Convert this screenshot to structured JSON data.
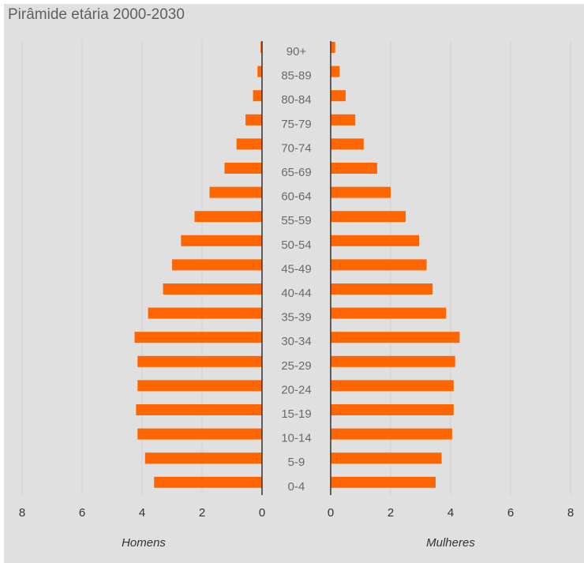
{
  "title": "Pirâmide etária 2000-2030",
  "chart_data": {
    "type": "bar",
    "orientation": "horizontal",
    "title": "Pirâmide etária 2000-2030",
    "categories": [
      "0-4",
      "5-9",
      "10-14",
      "15-19",
      "20-24",
      "25-29",
      "30-34",
      "35-39",
      "40-44",
      "45-49",
      "50-54",
      "55-59",
      "60-64",
      "65-69",
      "70-74",
      "75-79",
      "80-84",
      "85-89",
      "90+"
    ],
    "series": [
      {
        "name": "Homens",
        "values": [
          3.6,
          3.9,
          4.15,
          4.2,
          4.15,
          4.15,
          4.25,
          3.8,
          3.3,
          3.0,
          2.7,
          2.25,
          1.75,
          1.25,
          0.85,
          0.55,
          0.3,
          0.15,
          0.05
        ]
      },
      {
        "name": "Mulheres",
        "values": [
          3.5,
          3.7,
          4.05,
          4.1,
          4.1,
          4.15,
          4.3,
          3.85,
          3.4,
          3.2,
          2.95,
          2.5,
          2.0,
          1.55,
          1.1,
          0.82,
          0.5,
          0.3,
          0.15
        ]
      }
    ],
    "xlim": [
      0,
      8
    ],
    "x_ticks": [
      "8",
      "6",
      "4",
      "2",
      "0"
    ],
    "x_ticks_right": [
      "0",
      "2",
      "4",
      "6",
      "8"
    ],
    "xlabel_left": "Homens",
    "xlabel_right": "Mulheres",
    "bar_color": "#ff6600",
    "grid": true
  }
}
